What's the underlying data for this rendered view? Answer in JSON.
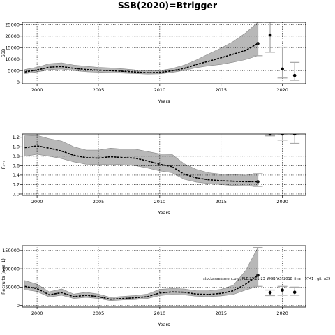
{
  "title": "SSB(2020)=Btrigger",
  "annotation": "stockassessment.org, PLE.27.21-23_WGBFAS_2018_final_r9741 , git: a29",
  "chart_data": [
    {
      "type": "line",
      "ylabel": "SSB",
      "xlabel": "Years",
      "xlim": [
        1998.8,
        2021.9
      ],
      "ylim": [
        -700,
        26000
      ],
      "xticks": [
        "2000",
        "2005",
        "2010",
        "2015",
        "2020"
      ],
      "yticks": [
        "0",
        "5000",
        "10000",
        "15000",
        "20000",
        "25000"
      ],
      "grid": "dotted",
      "x": [
        1999,
        2000,
        2001,
        2002,
        2003,
        2004,
        2005,
        2006,
        2007,
        2008,
        2009,
        2010,
        2011,
        2012,
        2013,
        2014,
        2015,
        2016,
        2017,
        2018
      ],
      "estimate": [
        4400,
        5300,
        6500,
        6800,
        6000,
        5500,
        5200,
        5000,
        4700,
        4400,
        4100,
        4200,
        4900,
        6000,
        7700,
        9100,
        10600,
        12200,
        13800,
        16800
      ],
      "lower": [
        3700,
        4400,
        5400,
        5700,
        5000,
        4500,
        4300,
        4100,
        3900,
        3700,
        3500,
        3600,
        4200,
        5100,
        6300,
        7100,
        7700,
        8700,
        9800,
        11500
      ],
      "upper": [
        5500,
        6500,
        8000,
        8400,
        7400,
        6900,
        6400,
        6200,
        5800,
        5300,
        5000,
        5000,
        5900,
        7400,
        9700,
        12300,
        14800,
        17700,
        21400,
        26000
      ],
      "forecast_x": [
        2019,
        2020,
        2021
      ],
      "forecast_median": [
        20500,
        5700,
        2900
      ],
      "forecast_low": [
        13000,
        1800,
        800
      ],
      "forecast_high": [
        26000,
        15200,
        8600
      ]
    },
    {
      "type": "line",
      "ylabel": "F₃₋₅",
      "xlabel": "Years",
      "xlim": [
        1998.8,
        2021.9
      ],
      "ylim": [
        -0.03,
        1.27
      ],
      "xticks": [
        "2000",
        "2005",
        "2010",
        "2015",
        "2020"
      ],
      "yticks": [
        "0.0",
        "0.2",
        "0.4",
        "0.6",
        "0.8",
        "1.0",
        "1.2"
      ],
      "grid": "dotted",
      "x": [
        1999,
        2000,
        2001,
        2002,
        2003,
        2004,
        2005,
        2006,
        2007,
        2008,
        2009,
        2010,
        2011,
        2012,
        2013,
        2014,
        2015,
        2016,
        2017,
        2018
      ],
      "estimate": [
        0.98,
        1.02,
        0.97,
        0.91,
        0.82,
        0.77,
        0.76,
        0.79,
        0.77,
        0.76,
        0.7,
        0.63,
        0.58,
        0.42,
        0.34,
        0.3,
        0.28,
        0.27,
        0.26,
        0.26
      ],
      "lower": [
        0.8,
        0.84,
        0.8,
        0.75,
        0.68,
        0.63,
        0.62,
        0.63,
        0.62,
        0.6,
        0.55,
        0.49,
        0.45,
        0.31,
        0.25,
        0.22,
        0.2,
        0.18,
        0.17,
        0.16
      ],
      "upper": [
        1.23,
        1.24,
        1.17,
        1.12,
        1.0,
        0.93,
        0.93,
        0.97,
        0.95,
        0.95,
        0.9,
        0.85,
        0.84,
        0.64,
        0.52,
        0.45,
        0.42,
        0.41,
        0.4,
        0.43
      ],
      "forecast_x": [
        2019,
        2020,
        2021
      ],
      "forecast_median": [
        1.27,
        1.27,
        1.27
      ],
      "forecast_low": [
        1.23,
        1.14,
        1.07
      ],
      "forecast_high": [
        1.27,
        1.27,
        1.27
      ]
    },
    {
      "type": "line",
      "ylabel": "Recruits (age 1)",
      "xlabel": "Years",
      "xlim": [
        1998.8,
        2021.9
      ],
      "ylim": [
        -4500,
        163000
      ],
      "xticks": [
        "2000",
        "2005",
        "2010",
        "2015",
        "2020"
      ],
      "yticks": [
        "0",
        "50000",
        "100000",
        "150000"
      ],
      "grid": "dotted",
      "x": [
        1999,
        2000,
        2001,
        2002,
        2003,
        2004,
        2005,
        2006,
        2007,
        2008,
        2009,
        2010,
        2011,
        2012,
        2013,
        2014,
        2015,
        2016,
        2017,
        2018
      ],
      "estimate": [
        52000,
        46000,
        29000,
        35000,
        24000,
        28000,
        24000,
        17000,
        19000,
        21000,
        24000,
        34000,
        37000,
        36000,
        31000,
        30000,
        33000,
        40000,
        58000,
        82000
      ],
      "lower": [
        43000,
        38000,
        23000,
        28000,
        19000,
        22000,
        19000,
        13000,
        15000,
        16000,
        19000,
        27000,
        30000,
        29000,
        25000,
        24000,
        26000,
        30000,
        42000,
        52000
      ],
      "upper": [
        68000,
        58000,
        37000,
        45000,
        31000,
        36000,
        31000,
        22000,
        25000,
        27000,
        31000,
        44000,
        46000,
        45000,
        40000,
        40000,
        44000,
        55000,
        95000,
        158000
      ],
      "forecast_x": [
        2019,
        2020,
        2021
      ],
      "forecast_median": [
        35000,
        42000,
        36000
      ],
      "forecast_low": [
        27000,
        28000,
        28000
      ],
      "forecast_high": [
        42000,
        52000,
        50000
      ]
    }
  ]
}
